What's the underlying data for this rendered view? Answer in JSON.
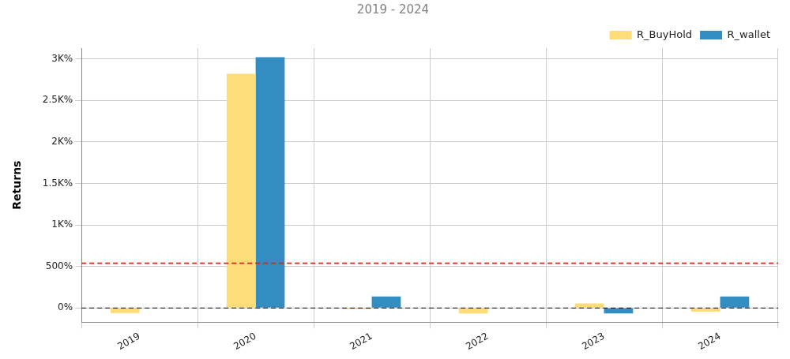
{
  "chart_data": {
    "type": "bar",
    "title": "2019 - 2024",
    "y_label": "Returns",
    "categories": [
      "2019",
      "2020",
      "2021",
      "2022",
      "2023",
      "2024"
    ],
    "series": [
      {
        "name": "R_BuyHold",
        "color": "#fedd78",
        "values": [
          -60,
          2820,
          -15,
          -65,
          55,
          -45
        ]
      },
      {
        "name": "R_wallet",
        "color": "#348dc1",
        "values": [
          0,
          3020,
          140,
          0,
          -65,
          140
        ]
      }
    ],
    "ylim": [
      -170,
      3130
    ],
    "yticks": [
      {
        "value": 0,
        "label": "0%"
      },
      {
        "value": 500,
        "label": "500%"
      },
      {
        "value": 1000,
        "label": "1K%"
      },
      {
        "value": 1500,
        "label": "1.5K%"
      },
      {
        "value": 2000,
        "label": "2K%"
      },
      {
        "value": 2500,
        "label": "2.5K%"
      },
      {
        "value": 3000,
        "label": "3K%"
      }
    ],
    "reference_lines": [
      {
        "value": 539,
        "color": "#e0201a",
        "line_style": "dashed"
      },
      {
        "value": 0,
        "color": "#000000",
        "line_style": "dashed"
      }
    ],
    "grid": true,
    "legend": "top-right"
  }
}
